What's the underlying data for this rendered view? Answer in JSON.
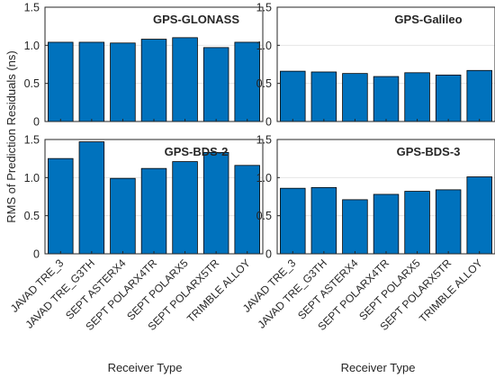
{
  "chart_data": [
    {
      "type": "bar",
      "title": "GPS-GLONASS",
      "categories": [
        "JAVAD TRE_3",
        "JAVAD TRE_G3TH",
        "SEPT ASTERX4",
        "SEPT POLARX4TR",
        "SEPT POLARX5",
        "SEPT POLARX5TR",
        "TRIMBLE ALLOY"
      ],
      "values": [
        1.04,
        1.04,
        1.03,
        1.08,
        1.1,
        0.97,
        1.04
      ],
      "ylim": [
        0,
        1.5
      ],
      "yticks": [
        "0",
        "0.5",
        "1.0",
        "1.5"
      ],
      "grid": "horizontal"
    },
    {
      "type": "bar",
      "title": "GPS-Galileo",
      "categories": [
        "JAVAD TRE_3",
        "JAVAD TRE_G3TH",
        "SEPT ASTERX4",
        "SEPT POLARX4TR",
        "SEPT POLARX5",
        "SEPT POLARX5TR",
        "TRIMBLE ALLOY"
      ],
      "values": [
        0.66,
        0.65,
        0.63,
        0.59,
        0.64,
        0.61,
        0.67
      ],
      "ylim": [
        0,
        1.5
      ],
      "yticks": [
        "0",
        "0.5",
        "1.0",
        "1.5"
      ],
      "grid": "horizontal"
    },
    {
      "type": "bar",
      "title": "GPS-BDS-2",
      "categories": [
        "JAVAD TRE_3",
        "JAVAD TRE_G3TH",
        "SEPT ASTERX4",
        "SEPT POLARX4TR",
        "SEPT POLARX5",
        "SEPT POLARX5TR",
        "TRIMBLE ALLOY"
      ],
      "values": [
        1.25,
        1.47,
        0.99,
        1.12,
        1.21,
        1.33,
        1.16
      ],
      "ylim": [
        0,
        1.5
      ],
      "yticks": [
        "0",
        "0.5",
        "1.0",
        "1.5"
      ],
      "grid": "horizontal"
    },
    {
      "type": "bar",
      "title": "GPS-BDS-3",
      "categories": [
        "JAVAD TRE_3",
        "JAVAD TRE_G3TH",
        "SEPT ASTERX4",
        "SEPT POLARX4TR",
        "SEPT POLARX5",
        "SEPT POLARX5TR",
        "TRIMBLE ALLOY"
      ],
      "values": [
        0.86,
        0.87,
        0.71,
        0.78,
        0.82,
        0.84,
        1.01
      ],
      "ylim": [
        0,
        1.5
      ],
      "yticks": [
        "0",
        "0.5",
        "1.0",
        "1.5"
      ],
      "grid": "horizontal"
    }
  ],
  "ylabel": "RMS of Prediction Residuals (ns)",
  "xlabel": "Receiver Type",
  "colors": {
    "bar": "#0072BD",
    "bar_edge": "#000000",
    "grid": "#e6e6e6",
    "axis": "#262626"
  }
}
